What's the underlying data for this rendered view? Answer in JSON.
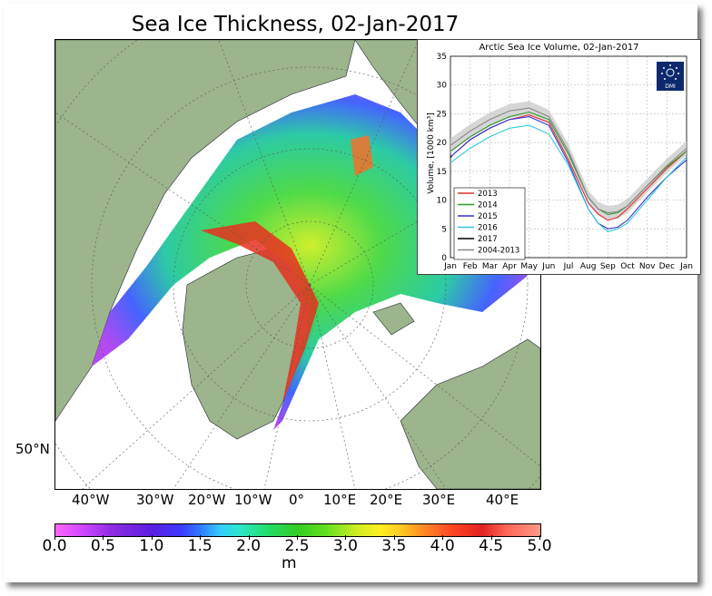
{
  "title": "Sea Ice Thickness, 02-Jan-2017",
  "map": {
    "lon_labels": [
      "40°W",
      "30°W",
      "20°W",
      "10°W",
      "0°",
      "10°E",
      "20°E",
      "30°E",
      "40°E"
    ],
    "lat_label": "50°N",
    "colors": {
      "land": "#9cb58c",
      "ocean": "#ffffff",
      "thick_ice": "#e83020",
      "medium_ice": "#22d84a",
      "thin_ice": "#6e2cf0"
    }
  },
  "colorbar": {
    "ticks": [
      "0.0",
      "0.5",
      "1.0",
      "1.5",
      "2.0",
      "2.5",
      "3.0",
      "3.5",
      "4.0",
      "4.5",
      "5.0"
    ],
    "unit": "m",
    "range": [
      0,
      5
    ]
  },
  "chart_data": {
    "type": "line",
    "title": "Arctic Sea Ice Volume, 02-Jan-2017",
    "ylabel": "Volume, [1000 km³]",
    "xlabel": "",
    "categories": [
      "Jan",
      "Feb",
      "Mar",
      "Apr",
      "May",
      "Jun",
      "Jul",
      "Aug",
      "Sep",
      "Oct",
      "Nov",
      "Dec",
      "Jan"
    ],
    "ylim": [
      0,
      35
    ],
    "yticks": [
      "0",
      "5",
      "10",
      "15",
      "20",
      "25",
      "30",
      "35"
    ],
    "grid": true,
    "legend_position": "bottom-left",
    "logo_text": "DMI",
    "series": [
      {
        "name": "2013",
        "color": "#e03030",
        "x": [
          0,
          1,
          2,
          3,
          4,
          5,
          6,
          7,
          7.5,
          8,
          8.5,
          9,
          10,
          11,
          12
        ],
        "y": [
          17.5,
          20.5,
          22.5,
          24,
          24.8,
          23.5,
          17,
          9.5,
          7.6,
          6.5,
          7,
          8.5,
          12,
          15.5,
          18.5
        ]
      },
      {
        "name": "2014",
        "color": "#2a9a2a",
        "x": [
          0,
          1,
          2,
          3,
          4,
          5,
          6,
          7,
          7.5,
          8,
          8.5,
          9,
          10,
          11,
          12
        ],
        "y": [
          18.5,
          21,
          23,
          24.5,
          25.3,
          24,
          18,
          10.5,
          8.5,
          7.5,
          7.8,
          9,
          12.5,
          15.8,
          18.5
        ]
      },
      {
        "name": "2015",
        "color": "#3030d0",
        "x": [
          0,
          1,
          2,
          3,
          4,
          5,
          6,
          7,
          7.5,
          8,
          8.5,
          9,
          10,
          11,
          12
        ],
        "y": [
          17.5,
          20.5,
          22.5,
          24,
          24.5,
          23,
          16.5,
          8.5,
          6,
          5,
          5.3,
          6.5,
          10.5,
          14,
          17
        ]
      },
      {
        "name": "2016",
        "color": "#30c8d8",
        "x": [
          0,
          1,
          2,
          3,
          4,
          5,
          6,
          7,
          7.5,
          8,
          8.5,
          9,
          10,
          11,
          12
        ],
        "y": [
          16.5,
          19,
          21,
          22.5,
          23,
          21.5,
          16,
          8.5,
          6,
          4.5,
          5,
          6,
          10,
          14,
          17.5
        ]
      },
      {
        "name": "2017",
        "color": "#000000",
        "x": [
          0,
          0.05
        ],
        "y": [
          17.5,
          17.6
        ]
      },
      {
        "name": "2004-2013",
        "color": "#888888",
        "x": [
          0,
          1,
          2,
          3,
          4,
          5,
          6,
          7,
          7.5,
          8,
          8.5,
          9,
          10,
          11,
          12
        ],
        "y": [
          19.5,
          22,
          24,
          25.5,
          26,
          24.5,
          18.5,
          10.5,
          8.5,
          7.8,
          8,
          9,
          12.5,
          16,
          19
        ]
      }
    ]
  }
}
